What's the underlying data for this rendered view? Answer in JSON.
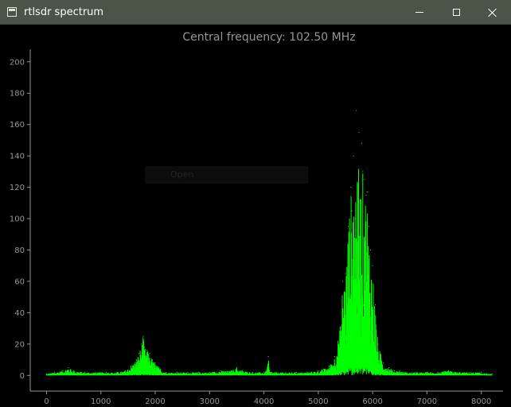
{
  "window": {
    "title": "rtlsdr spectrum",
    "icon": "app-window-icon",
    "controls": [
      "minimize-icon",
      "maximize-icon",
      "close-icon"
    ]
  },
  "plot": {
    "title": "Central frequency: 102.50 MHz",
    "overlay_text": "Open"
  },
  "colors": {
    "titlebar": "#4a5547",
    "background": "#000000",
    "trace": "#00ff00",
    "axis": "#969696"
  },
  "chart_data": {
    "type": "line",
    "title": "Central frequency: 102.50 MHz",
    "xlabel": "",
    "ylabel": "",
    "xlim": [
      -300,
      8400
    ],
    "ylim": [
      -10,
      208
    ],
    "xticks": [
      0,
      1000,
      2000,
      3000,
      4000,
      5000,
      6000,
      7000,
      8000
    ],
    "yticks": [
      0,
      20,
      40,
      60,
      80,
      100,
      120,
      140,
      160,
      180,
      200
    ],
    "grid": false,
    "legend": "none",
    "series": [
      {
        "x": [
          0,
          150,
          300,
          400,
          500,
          700,
          900,
          1100,
          1300,
          1450,
          1550,
          1650,
          1700,
          1750,
          1780,
          1800,
          1850,
          1900,
          1950,
          2000,
          2100,
          2200,
          2400,
          2600,
          2800,
          3000,
          3200,
          3400,
          3500,
          3600,
          3800,
          4000,
          4050,
          4080,
          4100,
          4150,
          4200,
          4400,
          4600,
          4800,
          5000,
          5100,
          5200,
          5300,
          5400,
          5450,
          5500,
          5550,
          5600,
          5620,
          5650,
          5680,
          5700,
          5720,
          5750,
          5780,
          5800,
          5820,
          5850,
          5880,
          5900,
          5930,
          5960,
          6000,
          6050,
          6100,
          6200,
          6300,
          6400,
          6500,
          6600,
          6800,
          7000,
          7200,
          7400,
          7600,
          7800,
          8000,
          8100,
          8200
        ],
        "y": [
          1,
          2,
          3,
          5,
          3,
          2,
          2,
          2,
          2,
          3,
          6,
          10,
          14,
          20,
          25,
          18,
          16,
          14,
          10,
          8,
          4,
          2,
          2,
          2,
          2,
          2,
          3,
          3,
          5,
          3,
          2,
          2,
          3,
          12,
          3,
          2,
          2,
          2,
          2,
          2,
          3,
          4,
          6,
          12,
          30,
          60,
          65,
          95,
          120,
          105,
          140,
          100,
          169,
          120,
          155,
          110,
          148,
          130,
          125,
          115,
          117,
          95,
          80,
          70,
          45,
          20,
          8,
          5,
          3,
          3,
          2,
          2,
          2,
          2,
          3,
          2,
          2,
          2,
          1,
          1
        ]
      }
    ]
  }
}
